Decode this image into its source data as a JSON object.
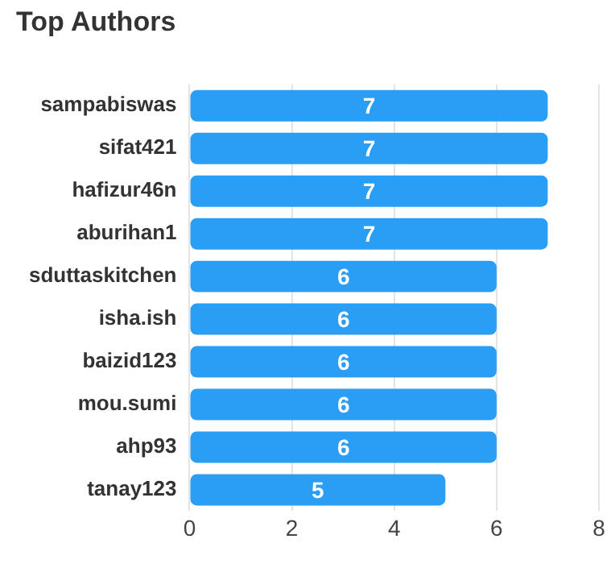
{
  "chart_data": {
    "type": "bar",
    "orientation": "horizontal",
    "title": "Top Authors",
    "categories": [
      "sampabiswas",
      "sifat421",
      "hafizur46n",
      "aburihan1",
      "sduttaskitchen",
      "isha.ish",
      "baizid123",
      "mou.sumi",
      "ahp93",
      "tanay123"
    ],
    "values": [
      7,
      7,
      7,
      7,
      6,
      6,
      6,
      6,
      6,
      5
    ],
    "color": "#2a9df4",
    "xlim": [
      0,
      8
    ],
    "xticks": [
      0,
      2,
      4,
      6,
      8
    ],
    "grid": "x",
    "data_labels": true,
    "legend": false
  }
}
